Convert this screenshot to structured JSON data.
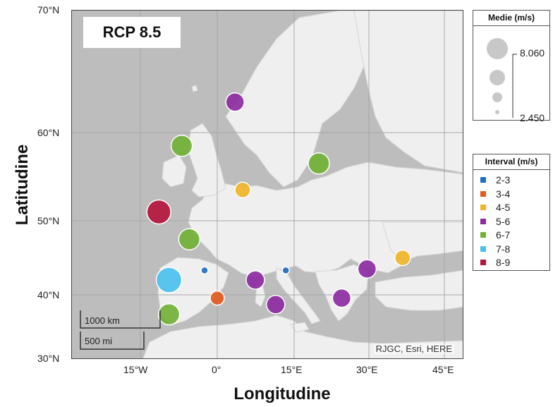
{
  "scenario_label": "RCP 8.5",
  "credits": "RJGC, Esri, HERE",
  "axes": {
    "xlabel": "Longitudine",
    "ylabel": "Latitudine",
    "lat_ticks": [
      "70°N",
      "60°N",
      "50°N",
      "40°N",
      "30°N"
    ],
    "lon_ticks": [
      "15°W",
      "0°",
      "15°E",
      "30°E",
      "45°E"
    ]
  },
  "scale_bar": {
    "km_label": "1000 km",
    "mi_label": "500 mi"
  },
  "size_legend": {
    "title": "Medie  (m/s)",
    "max_label": "8.060",
    "min_label": "2.450"
  },
  "interval_legend": {
    "title": "Interval (m/s)",
    "items": [
      {
        "label": "2-3",
        "color": "#1f6fc2"
      },
      {
        "label": "3-4",
        "color": "#e25b21"
      },
      {
        "label": "4-5",
        "color": "#f0b429"
      },
      {
        "label": "5-6",
        "color": "#8e2ca3"
      },
      {
        "label": "6-7",
        "color": "#72b236"
      },
      {
        "label": "7-8",
        "color": "#4cc0ee"
      },
      {
        "label": "8-9",
        "color": "#b4163c"
      }
    ]
  },
  "map_colors": {
    "sea": "#bdbdbd",
    "land": "#efefef",
    "grid": "#a8a8a8"
  },
  "chart_data": {
    "type": "scatter",
    "title": "RCP 8.5",
    "xlabel": "Longitudine",
    "ylabel": "Latitudine",
    "size_variable": "Medie (m/s)",
    "color_variable": "Interval (m/s)",
    "xlim": [
      -25,
      47
    ],
    "ylim": [
      30,
      70
    ],
    "points": [
      {
        "lon": 3.5,
        "lat": 62.5,
        "interval": "5-6"
      },
      {
        "lon": -7.0,
        "lat": 58.5,
        "interval": "6-7"
      },
      {
        "lon": 20.0,
        "lat": 56.5,
        "interval": "6-7"
      },
      {
        "lon": 5.0,
        "lat": 53.5,
        "interval": "4-5"
      },
      {
        "lon": -11.5,
        "lat": 51.0,
        "interval": "8-9"
      },
      {
        "lon": -5.5,
        "lat": 47.5,
        "interval": "6-7"
      },
      {
        "lon": 36.5,
        "lat": 45.0,
        "interval": "4-5"
      },
      {
        "lon": 29.5,
        "lat": 43.5,
        "interval": "5-6"
      },
      {
        "lon": -9.5,
        "lat": 42.0,
        "interval": "7-8"
      },
      {
        "lon": -2.5,
        "lat": 43.3,
        "interval": "2-3"
      },
      {
        "lon": 13.5,
        "lat": 43.3,
        "interval": "2-3"
      },
      {
        "lon": 7.5,
        "lat": 42.0,
        "interval": "5-6"
      },
      {
        "lon": 0.0,
        "lat": 39.5,
        "interval": "3-4"
      },
      {
        "lon": 11.5,
        "lat": 38.5,
        "interval": "5-6"
      },
      {
        "lon": 24.5,
        "lat": 39.5,
        "interval": "5-6"
      },
      {
        "lon": -9.5,
        "lat": 37.0,
        "interval": "6-7"
      }
    ]
  }
}
